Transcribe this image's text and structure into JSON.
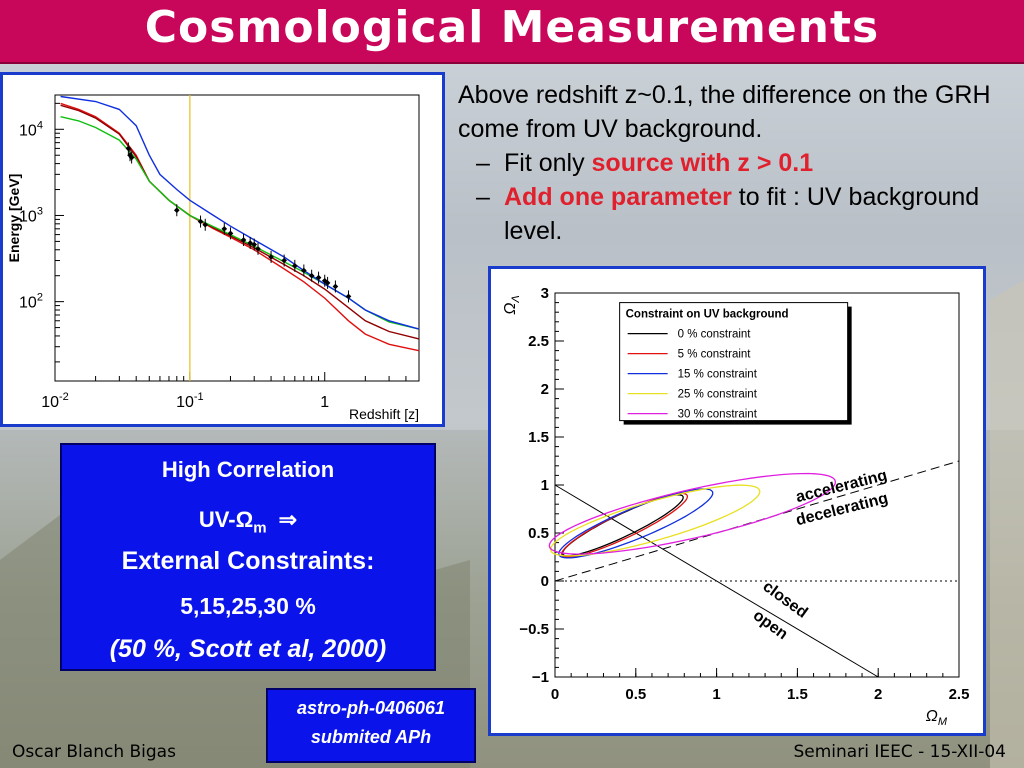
{
  "title": "Cosmological Measurements",
  "text_block": {
    "line1": "Above redshift z~0.1, the difference on the GRH come from UV background.",
    "bullet1_prefix": "Fit only ",
    "bullet1_highlight": "source with z > 0.1",
    "bullet2_highlight": "Add one parameter",
    "bullet2_suffix": " to fit : UV background level.",
    "dash": "–"
  },
  "blue_box": {
    "line1": "High Correlation",
    "line2": "UV-Ω",
    "line2_sub": "m",
    "line2_arrow": "⇒",
    "line3": "External Constraints:",
    "line4": "5,15,25,30 %",
    "line5": "(50 %, Scott et al, 2000)"
  },
  "reference": {
    "line1": "astro-ph-0406061",
    "line2": "submited  APh"
  },
  "footer": {
    "left": "Oscar Blanch Bigas",
    "right": "Seminari IEEC - 15-XII-04"
  },
  "colors": {
    "header": "#c8075a",
    "box_blue": "#0a14ea",
    "frame_blue": "#1a3ccc",
    "highlight_red": "#e0202c"
  },
  "chart_data": [
    {
      "type": "line",
      "title": "",
      "xlabel": "Redshift [z]",
      "ylabel": "Energy [GeV]",
      "x_scale": "log",
      "y_scale": "log",
      "xlim": [
        0.01,
        5
      ],
      "ylim": [
        12,
        25000
      ],
      "x_ticks": [
        {
          "v": 0.01,
          "label": "10^-2"
        },
        {
          "v": 0.1,
          "label": "10^-1"
        },
        {
          "v": 1,
          "label": "1"
        }
      ],
      "y_ticks": [
        {
          "v": 100,
          "label": "10^2"
        },
        {
          "v": 1000,
          "label": "10^3"
        },
        {
          "v": 10000,
          "label": "10^4"
        }
      ],
      "vline": {
        "x": 0.1,
        "color": "#e8c020"
      },
      "series": [
        {
          "color": "#e01010",
          "points": [
            [
              0.011,
              20000
            ],
            [
              0.015,
              17000
            ],
            [
              0.02,
              14000
            ],
            [
              0.03,
              9000
            ],
            [
              0.04,
              5000
            ],
            [
              0.05,
              2500
            ],
            [
              0.07,
              1500
            ],
            [
              0.1,
              1000
            ],
            [
              0.15,
              700
            ],
            [
              0.2,
              560
            ],
            [
              0.3,
              400
            ],
            [
              0.5,
              240
            ],
            [
              0.7,
              170
            ],
            [
              1,
              110
            ],
            [
              1.5,
              60
            ],
            [
              2,
              42
            ],
            [
              3,
              32
            ],
            [
              5,
              27
            ]
          ]
        },
        {
          "color": "#900000",
          "points": [
            [
              0.011,
              19000
            ],
            [
              0.015,
              16500
            ],
            [
              0.02,
              13500
            ],
            [
              0.03,
              8800
            ],
            [
              0.04,
              4800
            ],
            [
              0.05,
              2500
            ],
            [
              0.07,
              1500
            ],
            [
              0.1,
              1000
            ],
            [
              0.15,
              720
            ],
            [
              0.2,
              580
            ],
            [
              0.3,
              420
            ],
            [
              0.5,
              270
            ],
            [
              0.7,
              200
            ],
            [
              1,
              140
            ],
            [
              1.5,
              85
            ],
            [
              2,
              60
            ],
            [
              3,
              45
            ],
            [
              5,
              37
            ]
          ]
        },
        {
          "color": "#10c010",
          "points": [
            [
              0.011,
              14000
            ],
            [
              0.015,
              12500
            ],
            [
              0.02,
              10500
            ],
            [
              0.03,
              7500
            ],
            [
              0.04,
              4500
            ],
            [
              0.05,
              2500
            ],
            [
              0.07,
              1500
            ],
            [
              0.1,
              1000
            ],
            [
              0.15,
              740
            ],
            [
              0.2,
              600
            ],
            [
              0.3,
              440
            ],
            [
              0.5,
              290
            ],
            [
              0.7,
              220
            ],
            [
              1,
              160
            ],
            [
              1.5,
              110
            ],
            [
              2,
              80
            ],
            [
              3,
              58
            ],
            [
              5,
              48
            ]
          ]
        },
        {
          "color": "#1030e0",
          "points": [
            [
              0.011,
              24000
            ],
            [
              0.02,
              21000
            ],
            [
              0.03,
              17000
            ],
            [
              0.04,
              11000
            ],
            [
              0.05,
              5000
            ],
            [
              0.06,
              3000
            ],
            [
              0.08,
              2000
            ],
            [
              0.1,
              1500
            ],
            [
              0.15,
              1000
            ],
            [
              0.2,
              750
            ],
            [
              0.3,
              520
            ],
            [
              0.5,
              330
            ],
            [
              0.7,
              230
            ],
            [
              1,
              160
            ],
            [
              1.5,
              110
            ],
            [
              2,
              80
            ],
            [
              3,
              60
            ],
            [
              5,
              48
            ]
          ]
        }
      ],
      "points": [
        [
          0.035,
          6000
        ],
        [
          0.036,
          5000
        ],
        [
          0.037,
          4700
        ],
        [
          0.08,
          1150
        ],
        [
          0.12,
          850
        ],
        [
          0.13,
          780
        ],
        [
          0.18,
          700
        ],
        [
          0.2,
          620
        ],
        [
          0.25,
          520
        ],
        [
          0.28,
          480
        ],
        [
          0.3,
          460
        ],
        [
          0.32,
          410
        ],
        [
          0.4,
          330
        ],
        [
          0.5,
          300
        ],
        [
          0.6,
          260
        ],
        [
          0.7,
          230
        ],
        [
          0.8,
          200
        ],
        [
          0.9,
          190
        ],
        [
          1.0,
          175
        ],
        [
          1.05,
          165
        ],
        [
          1.2,
          150
        ],
        [
          1.5,
          115
        ]
      ]
    },
    {
      "type": "line",
      "title": "",
      "xlabel": "Ω_M",
      "ylabel": "Ω_Λ",
      "xlim": [
        0,
        2.5
      ],
      "ylim": [
        -1,
        3
      ],
      "x_ticks": [
        0,
        0.5,
        1,
        1.5,
        2,
        2.5
      ],
      "y_ticks": [
        -1,
        -0.5,
        0,
        0.5,
        1,
        1.5,
        2,
        2.5,
        3
      ],
      "x_tick_labels": [
        "0",
        "0.5",
        "1",
        "1.5",
        "2",
        "2.5"
      ],
      "y_tick_labels": [
        "−1",
        "−0.5",
        "0",
        "0.5",
        "1",
        "1.5",
        "2",
        "2.5",
        "3"
      ],
      "legend": {
        "title": "Constraint on UV background",
        "placement": "top-right",
        "entries": [
          {
            "label": "0 % constraint",
            "color": "#000000"
          },
          {
            "label": "5 % constraint",
            "color": "#e01010"
          },
          {
            "label": "15 % constraint",
            "color": "#1030e0"
          },
          {
            "label": "25 % constraint",
            "color": "#e8e020"
          },
          {
            "label": "30 % constraint",
            "color": "#e020e0"
          }
        ]
      },
      "annotations": [
        "accelerating",
        "decelerating",
        "closed",
        "open"
      ],
      "contours": [
        {
          "color": "#000000",
          "center": [
            0.42,
            0.58
          ],
          "semi_axes": [
            0.48,
            0.1
          ],
          "angle_deg": 40
        },
        {
          "color": "#e01010",
          "center": [
            0.43,
            0.58
          ],
          "semi_axes": [
            0.5,
            0.11
          ],
          "angle_deg": 40
        },
        {
          "color": "#1030e0",
          "center": [
            0.5,
            0.6
          ],
          "semi_axes": [
            0.58,
            0.14
          ],
          "angle_deg": 36
        },
        {
          "color": "#e8e020",
          "center": [
            0.62,
            0.63
          ],
          "semi_axes": [
            0.72,
            0.19
          ],
          "angle_deg": 27
        },
        {
          "color": "#e020e0",
          "center": [
            0.85,
            0.7
          ],
          "semi_axes": [
            0.95,
            0.24
          ],
          "angle_deg": 22
        }
      ],
      "reference_lines": [
        {
          "name": "flat",
          "from": [
            0,
            1
          ],
          "to": [
            2,
            -1
          ],
          "style": "solid"
        },
        {
          "name": "acceleration",
          "from": [
            0,
            0
          ],
          "to": [
            2.5,
            1.25
          ],
          "style": "dashed"
        },
        {
          "name": "zero",
          "from": [
            0,
            0
          ],
          "to": [
            2.5,
            0
          ],
          "style": "dotted"
        }
      ]
    }
  ]
}
